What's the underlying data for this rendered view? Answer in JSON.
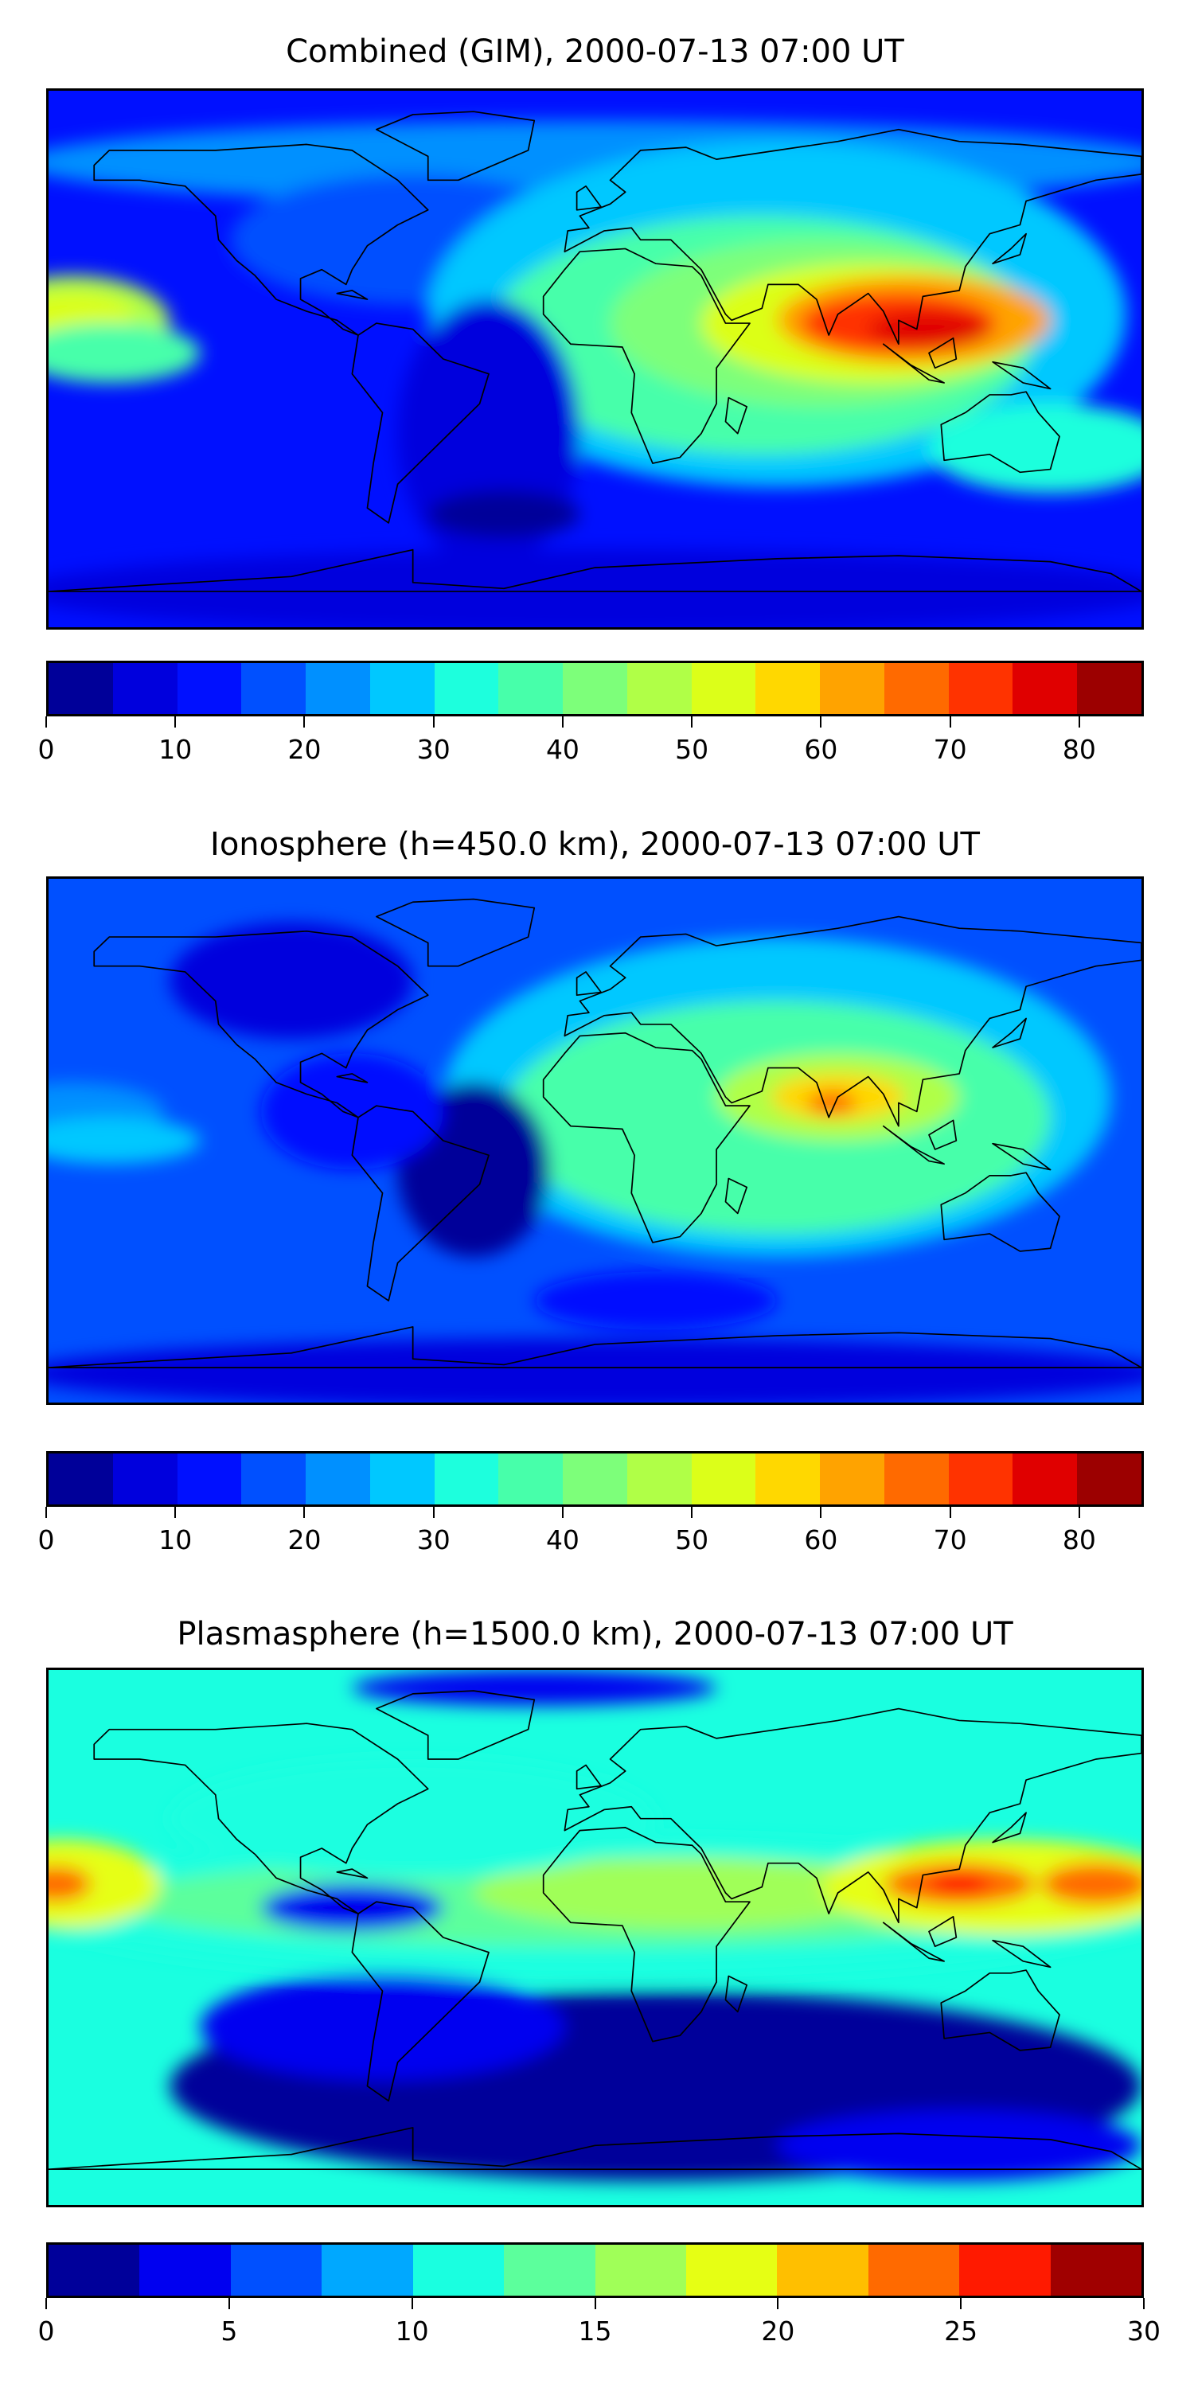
{
  "chart_data": [
    {
      "type": "heatmap",
      "title": "Combined (GIM), 2000-07-13 07:00 UT",
      "colorbar": {
        "levels": [
          0,
          5,
          10,
          15,
          20,
          25,
          30,
          35,
          40,
          45,
          50,
          55,
          60,
          65,
          70,
          75,
          80,
          85
        ],
        "ticks": [
          0,
          10,
          20,
          30,
          40,
          50,
          60,
          70,
          80
        ],
        "colors": [
          "#000099",
          "#0000dd",
          "#0010ff",
          "#0050ff",
          "#0090ff",
          "#00c8ff",
          "#1dffdd",
          "#47ffaa",
          "#7dff7a",
          "#b0ff47",
          "#dcff19",
          "#ffd800",
          "#ffa300",
          "#ff6a00",
          "#ff3300",
          "#e00000",
          "#9c0000"
        ]
      },
      "xlim": [
        -180,
        180
      ],
      "ylim": [
        -90,
        90
      ],
      "features": "max ~75-80 over South/Southeast Asia; secondary ~50 over central Pacific; minima ~5-10 over South Atlantic and Antarctica"
    },
    {
      "type": "heatmap",
      "title": "Ionosphere  (h=450.0 km), 2000-07-13 07:00 UT",
      "colorbar": {
        "levels": [
          0,
          5,
          10,
          15,
          20,
          25,
          30,
          35,
          40,
          45,
          50,
          55,
          60,
          65,
          70,
          75,
          80,
          85
        ],
        "ticks": [
          0,
          10,
          20,
          30,
          40,
          50,
          60,
          70,
          80
        ],
        "colors": [
          "#000099",
          "#0000dd",
          "#0010ff",
          "#0050ff",
          "#0090ff",
          "#00c8ff",
          "#1dffdd",
          "#47ffaa",
          "#7dff7a",
          "#b0ff47",
          "#dcff19",
          "#ffd800",
          "#ffa300",
          "#ff6a00",
          "#ff3300",
          "#e00000",
          "#9c0000"
        ]
      },
      "xlim": [
        -180,
        180
      ],
      "ylim": [
        -90,
        90
      ],
      "features": "max ~60-65 over India; 35-45 across Africa/Asia/Indian Ocean; minima ~0-10 over South America/Atlantic"
    },
    {
      "type": "heatmap",
      "title": "Plasmasphere (h=1500.0 km), 2000-07-13 07:00 UT",
      "colorbar": {
        "levels": [
          0,
          2.5,
          5,
          7.5,
          10,
          12.5,
          15,
          17.5,
          20,
          22.5,
          25,
          27.5,
          30
        ],
        "ticks": [
          0,
          5,
          10,
          15,
          20,
          25,
          30
        ],
        "colors": [
          "#00009a",
          "#0000f0",
          "#0050ff",
          "#00a8ff",
          "#1affe0",
          "#5cff9c",
          "#a0ff58",
          "#e6ff14",
          "#ffbf00",
          "#ff6a00",
          "#ff1a00",
          "#a00000"
        ]
      },
      "xlim": [
        -180,
        180
      ],
      "ylim": [
        -90,
        90
      ],
      "features": "maxima ~22-25 near dateline and over Southeast Asia/W Pacific at ~15N; minima ~0-2.5 over southern oceans"
    }
  ]
}
